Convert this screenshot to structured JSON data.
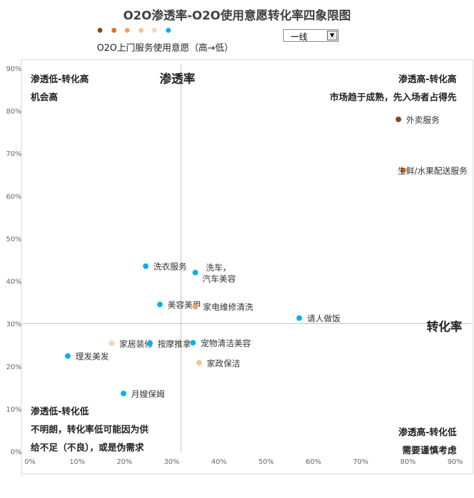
{
  "title": "O2O渗透率-O2O使用意愿转化率四象限图",
  "legend": {
    "label": "O2O上门服务使用意愿（高→低）",
    "colors": [
      "#8B4513",
      "#E07020",
      "#F0A060",
      "#F8C090",
      "#FAD3B8",
      "#00B0F0"
    ]
  },
  "filter": {
    "selected": "一线"
  },
  "quadrants": {
    "top_left": [
      "渗透低-转化高",
      "机会高"
    ],
    "top_right": [
      "渗透高-转化高",
      "市场趋于成熟，先入场者占得先"
    ],
    "bottom_left": [
      "渗透低-转化低",
      "不明朗，转化率低可能因为供",
      "给不足（不良），或是伪需求"
    ],
    "bottom_right": [
      "渗透高-转化低",
      "需要谨慎考虑"
    ]
  },
  "chart_data": {
    "type": "scatter",
    "title": "O2O渗透率-O2O使用意愿转化率四象限图",
    "xlabel": "转化率",
    "ylabel": "渗透率",
    "xlim": [
      0,
      90
    ],
    "ylim": [
      0,
      90
    ],
    "x_ticks": [
      "0%",
      "10%",
      "20%",
      "30%",
      "40%",
      "50%",
      "60%",
      "70%",
      "80%",
      "90%"
    ],
    "y_ticks": [
      "0%",
      "10%",
      "20%",
      "30%",
      "40%",
      "50%",
      "60%",
      "70%",
      "80%",
      "90%"
    ],
    "crosshair": {
      "x": 32,
      "y": 30
    },
    "grid": false,
    "points": [
      {
        "label": "外卖服务",
        "x": 78,
        "y": 78,
        "color": "#8B4513"
      },
      {
        "label": "生鲜/水果配送服务",
        "x": 79,
        "y": 66,
        "color": "#E07020"
      },
      {
        "label": "洗衣服务",
        "x": 24.5,
        "y": 43.5,
        "color": "#00B0F0"
      },
      {
        "label": "洗车，",
        "label2": "汽车美容",
        "x": 35,
        "y": 42,
        "color": "#00B0F0"
      },
      {
        "label": "美容美甲",
        "x": 27.5,
        "y": 34.5,
        "color": "#00B0F0"
      },
      {
        "label": "家电维修清洗",
        "x": 35,
        "y": 34,
        "color": "#F0A060"
      },
      {
        "label": "请人做饭",
        "x": 57,
        "y": 31.3,
        "color": "#00B0F0"
      },
      {
        "label": "家居装修",
        "x": 17.3,
        "y": 25.4,
        "color": "#FAD3B8"
      },
      {
        "label": "按摩推拿",
        "x": 25.4,
        "y": 25.4,
        "color": "#00B0F0"
      },
      {
        "label": "宠物清洁美容",
        "x": 34.5,
        "y": 25.5,
        "color": "#00B0F0"
      },
      {
        "label": "理发美发",
        "x": 8,
        "y": 22.4,
        "color": "#00B0F0"
      },
      {
        "label": "家政保洁",
        "x": 35.8,
        "y": 20.8,
        "color": "#F8C090"
      },
      {
        "label": "月嫂保姆",
        "x": 19.8,
        "y": 13.6,
        "color": "#00B0F0"
      }
    ]
  }
}
